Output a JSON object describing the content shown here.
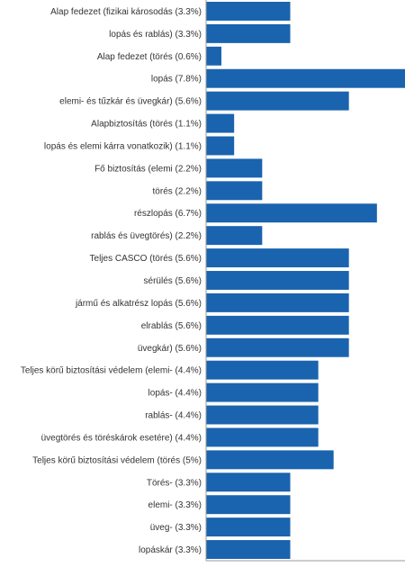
{
  "colors": {
    "bar": "#1a63ae",
    "axis": "#999999"
  },
  "chart_data": {
    "type": "bar",
    "orientation": "horizontal",
    "categories": [
      "Alap fedezet (fizikai károsodás (3.3%)",
      "lopás és rablás) (3.3%)",
      "Alap fedezet (törés (0.6%)",
      "lopás (7.8%)",
      "elemi- és tűzkár és üvegkár) (5.6%)",
      "Alapbiztosítás (törés (1.1%)",
      "lopás és elemi kárra vonatkozik) (1.1%)",
      "Fő biztosítás (elemi (2.2%)",
      "törés (2.2%)",
      "részlopás (6.7%)",
      "rablás és üvegtörés) (2.2%)",
      "Teljes CASCO (törés (5.6%)",
      "sérülés (5.6%)",
      "jármű és alkatrész lopás (5.6%)",
      "elrablás (5.6%)",
      "üvegkár) (5.6%)",
      "Teljes körű biztosítási védelem (elemi- (4.4%)",
      "lopás- (4.4%)",
      "rablás- (4.4%)",
      "üvegtörés és töréskárok esetére) (4.4%)",
      "Teljes körű biztosítási védelem (törés (5%)",
      "Törés- (3.3%)",
      "elemi- (3.3%)",
      "üveg- (3.3%)",
      "lopáskár (3.3%)"
    ],
    "values": [
      3.3,
      3.3,
      0.6,
      7.8,
      5.6,
      1.1,
      1.1,
      2.2,
      2.2,
      6.7,
      2.2,
      5.6,
      5.6,
      5.6,
      5.6,
      5.6,
      4.4,
      4.4,
      4.4,
      4.4,
      5.0,
      3.3,
      3.3,
      3.3,
      3.3
    ],
    "xlim": [
      0,
      7.8
    ],
    "grid": false,
    "legend": "none"
  }
}
